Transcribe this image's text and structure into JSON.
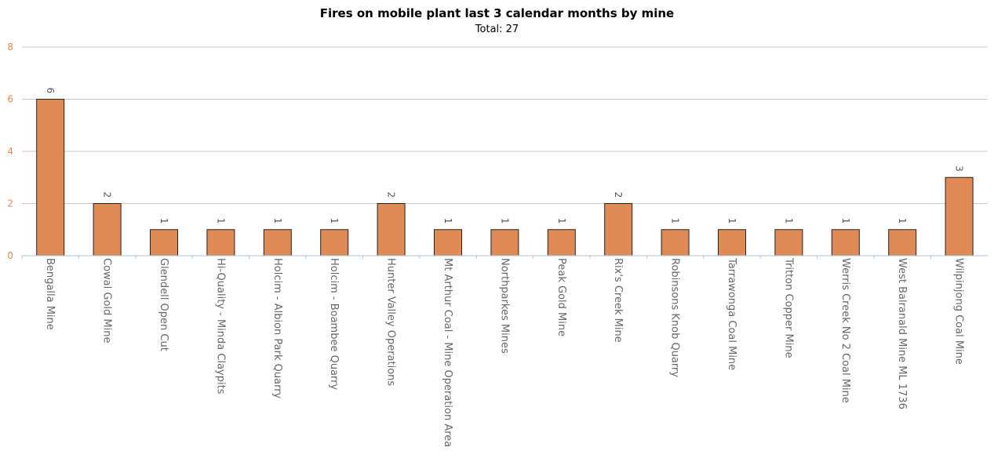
{
  "chart_data": {
    "type": "bar",
    "title": "Fires on mobile plant last 3 calendar months by mine",
    "subtitle": "Total: 27",
    "xlabel": "",
    "ylabel": "",
    "ylim": [
      0,
      8
    ],
    "yticks": [
      0,
      2,
      4,
      6,
      8
    ],
    "grid": true,
    "categories": [
      "Bengalla Mine",
      "Cowal Gold Mine",
      "Glendell Open Cut",
      "Hi-Quality - Minda Claypits",
      "Holcim - Albion Park Quarry",
      "Holcim - Boambee Quarry",
      "Hunter Valley Operations",
      "Mt Arthur Coal - Mine Operation Area",
      "Northparkes Mines",
      "Peak Gold Mine",
      "Rix's Creek Mine",
      "Robinsons Knob Quarry",
      "Tarrawonga Coal Mine",
      "Tritton Copper Mine",
      "Werris Creek No 2 Coal Mine",
      "West Balranald Mine ML 1736",
      "Wilpinjong Coal Mine"
    ],
    "values": [
      6,
      2,
      1,
      1,
      1,
      1,
      2,
      1,
      1,
      1,
      2,
      1,
      1,
      1,
      1,
      1,
      3
    ],
    "colors": {
      "bar_fill": "#e08a56",
      "bar_stroke": "#222222",
      "axis_tick_y": "#e08a56",
      "axis_tick_x": "#666666",
      "grid": "#c8c8c8",
      "baseline": "#a9c7e0",
      "data_label": "#555555"
    }
  }
}
